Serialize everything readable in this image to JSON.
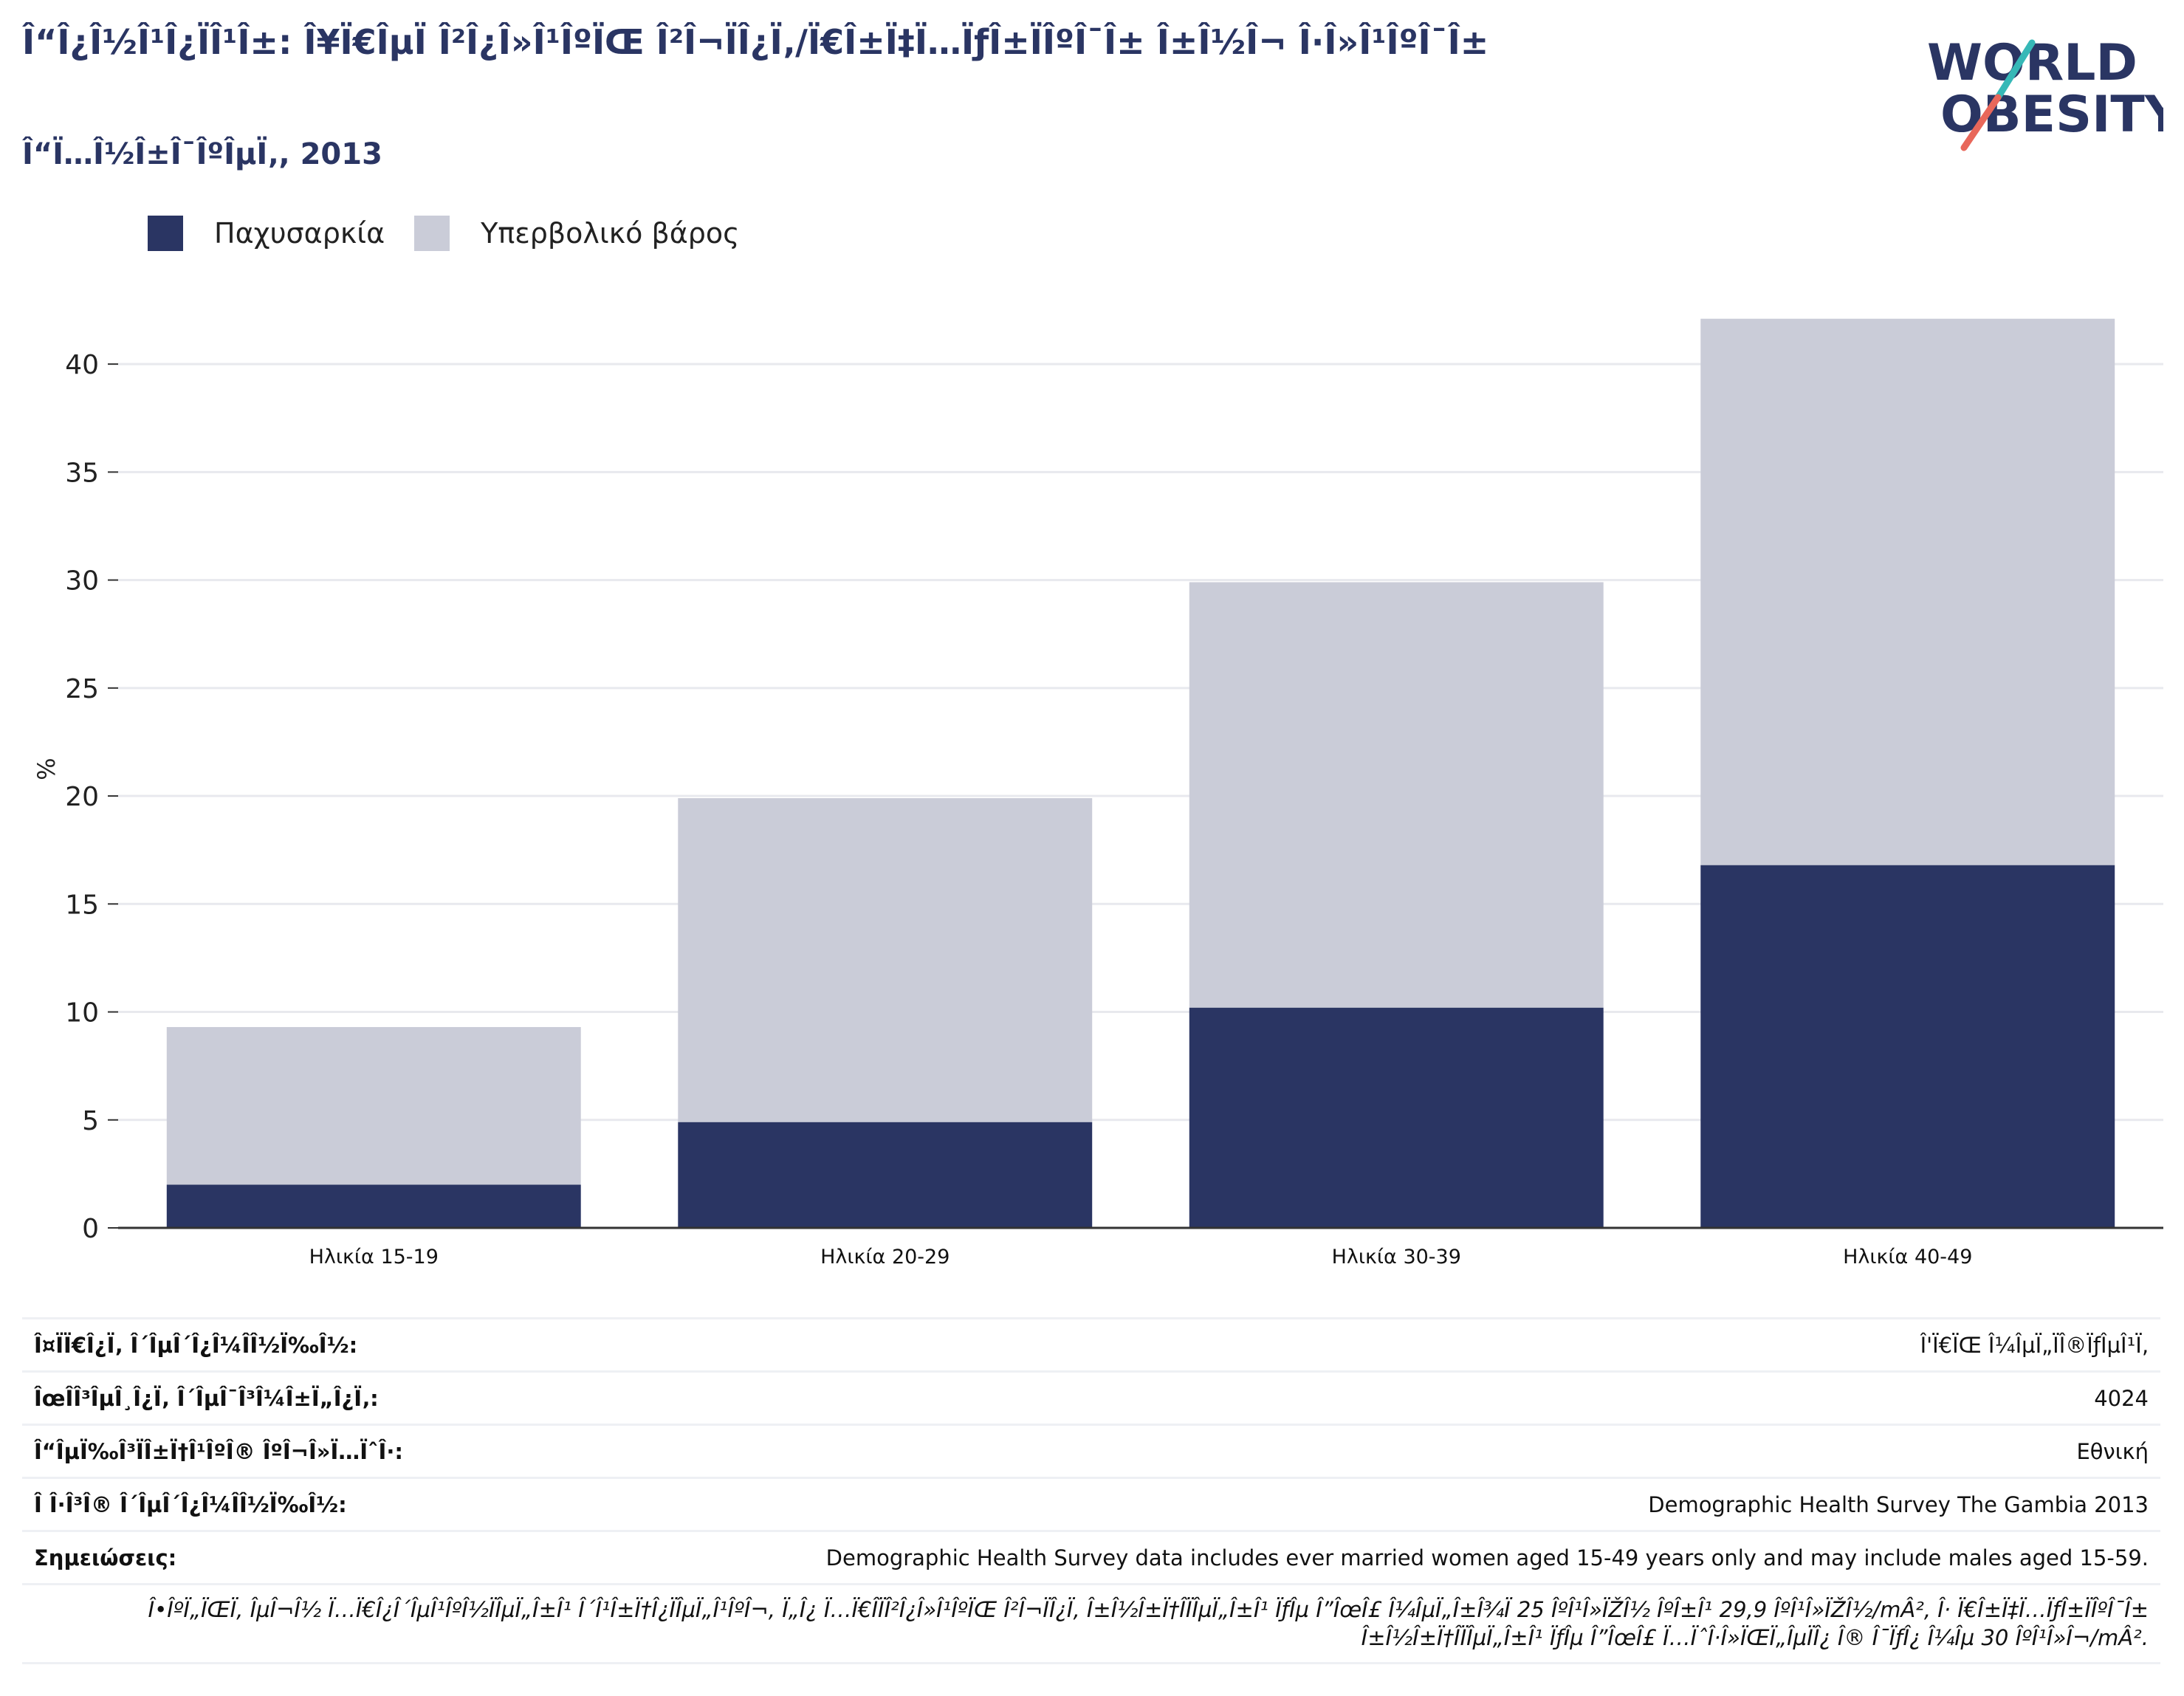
{
  "header": {
    "title": "Î“Î¿Î½Î¹Î¿ÏÎ¹Î±: Î¥Ï€ÎµÏ Î²Î¿Î»Î¹ÎºÏŒ Î²Î¬ÏÎ¿Ï‚/Ï€Î±Ï‡Ï…ÏƒÎ±ÏÎºÎ¯Î± Î±Î½Î¬ Î·Î»Î¹ÎºÎ¯Î±",
    "subtitle": "Î“Ï…Î½Î±Î¯ÎºÎµÏ‚, 2013"
  },
  "logo": {
    "line1": "WORLD",
    "line2": "OBESITY",
    "icon": "slash-logo-icon"
  },
  "colors": {
    "obesity": "#2a3563",
    "overweight": "#caccd8",
    "axis": "#333333",
    "grid": "#e8e9ee"
  },
  "chart_data": {
    "type": "bar",
    "stacked": true,
    "categories": [
      "Ηλικία 15-19",
      "Ηλικία 20-29",
      "Ηλικία 30-39",
      "Ηλικία 40-49"
    ],
    "series": [
      {
        "name": "Παχυσαρκία",
        "values": [
          2.0,
          4.9,
          10.2,
          16.8
        ]
      },
      {
        "name": "Υπερβολικό βάρος",
        "values": [
          7.3,
          15.0,
          19.7,
          25.3
        ]
      }
    ],
    "totals": [
      9.3,
      19.9,
      29.9,
      42.1
    ],
    "ylabel": "%",
    "ylim": [
      0,
      42.5
    ],
    "yticks": [
      0,
      5,
      10,
      15,
      20,
      25,
      30,
      35,
      40
    ],
    "grid": true,
    "legend_position": "top-left"
  },
  "info": [
    {
      "label": "Î¤ÏÏ€Î¿Ï‚ Î´ÎµÎ´Î¿Î¼Î­Î½Ï‰Î½:",
      "value": "Î'Ï€ÏŒ Î¼ÎµÏ„ÏÎ®ÏƒÎµÎ¹Ï‚"
    },
    {
      "label": "ÎœÎ­Î³ÎµÎ¸Î¿Ï‚ Î´ÎµÎ¯Î³Î¼Î±Ï„Î¿Ï‚:",
      "value": "4024"
    },
    {
      "label": "Î“ÎµÏ‰Î³ÏÎ±Ï†Î¹ÎºÎ® ÎºÎ¬Î»Ï…ÏˆÎ·:",
      "value": "Εθνική"
    },
    {
      "label": "Î Î·Î³Î® Î´ÎµÎ´Î¿Î¼Î­Î½Ï‰Î½:",
      "value": "Demographic Health Survey The Gambia 2013"
    },
    {
      "label": "Σημειώσεις:",
      "value": "Demographic Health Survey data includes ever married women aged 15-49 years only and may include males aged 15-59."
    }
  ],
  "note": "Î•ÎºÏ„ÏŒÏ‚ ÎµÎ¬Î½ Ï…Ï€Î¿Î´ÎµÎ¹ÎºÎ½ÏÎµÏ„Î±Î¹ Î´Î¹Î±Ï†Î¿ÏÎµÏ„Î¹ÎºÎ¬, Ï„Î¿ Ï…Ï€Î­ÏÎ²Î¿Î»Î¹ÎºÏŒ Î²Î¬ÏÎ¿Ï‚ Î±Î½Î±Ï†Î­ÏÎµÏ„Î±Î¹ ÏƒÎµ Î”ÎœÎ£ Î¼ÎµÏ„Î±Î¾Ï 25 ÎºÎ¹Î»ÏŽÎ½ ÎºÎ±Î¹ 29,9 ÎºÎ¹Î»ÏŽÎ½/mÂ², Î· Ï€Î±Ï‡Ï…ÏƒÎ±ÏÎºÎ¯Î± Î±Î½Î±Ï†Î­ÏÎµÏ„Î±Î¹ ÏƒÎµ Î”ÎœÎ£ Ï…ÏˆÎ·Î»ÏŒÏ„ÎµÏÎ¿ Î® Î¯ÏƒÎ¿ Î¼Îµ 30 ÎºÎ¹Î»Î¬/mÂ²."
}
